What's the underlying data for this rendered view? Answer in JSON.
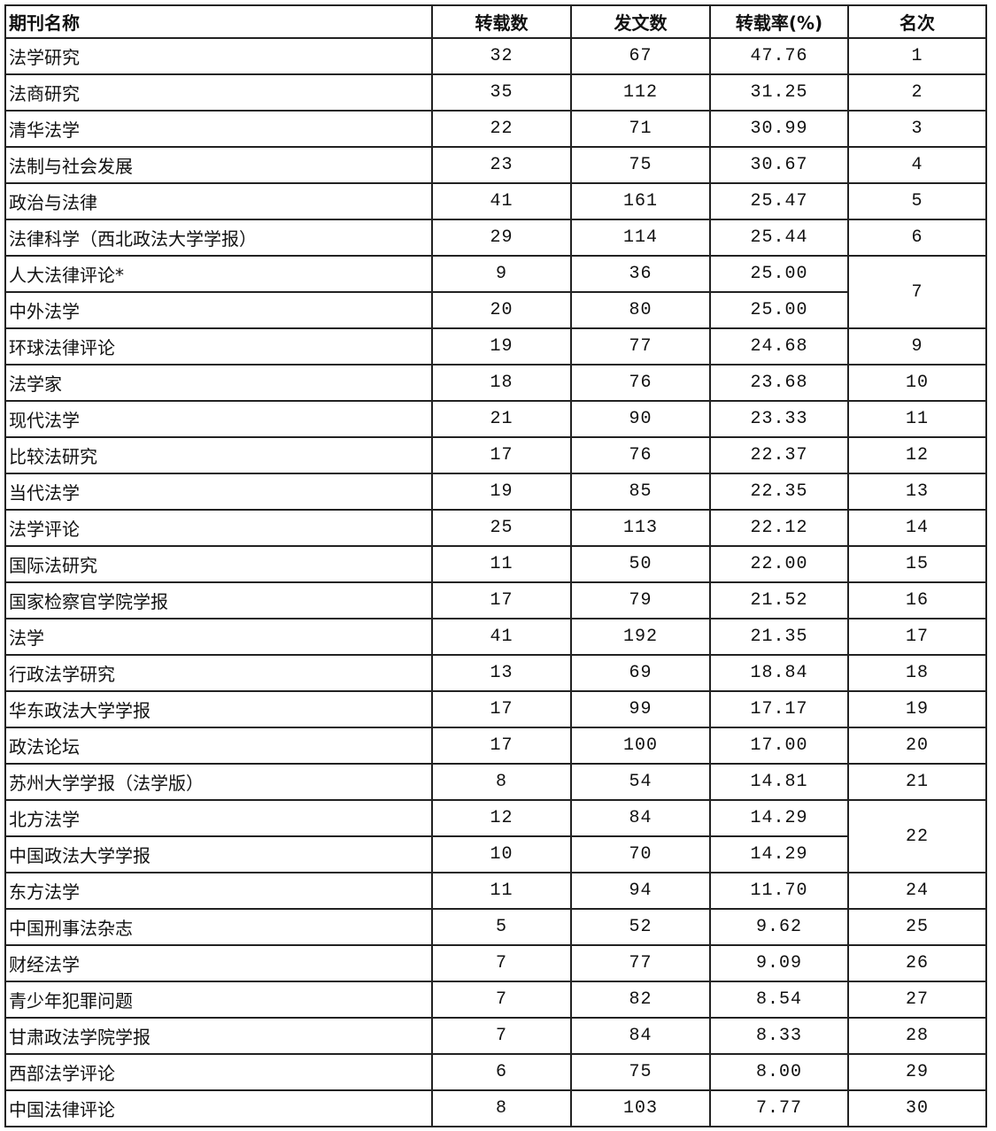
{
  "headers": [
    "期刊名称",
    "转载数",
    "发文数",
    "转载率(%)",
    "名次"
  ],
  "rows": [
    {
      "name": "法学研究",
      "reprints": "32",
      "articles": "67",
      "rate": "47.76",
      "rank": "1"
    },
    {
      "name": "法商研究",
      "reprints": "35",
      "articles": "112",
      "rate": "31.25",
      "rank": "2"
    },
    {
      "name": "清华法学",
      "reprints": "22",
      "articles": "71",
      "rate": "30.99",
      "rank": "3"
    },
    {
      "name": "法制与社会发展",
      "reprints": "23",
      "articles": "75",
      "rate": "30.67",
      "rank": "4"
    },
    {
      "name": "政治与法律",
      "reprints": "41",
      "articles": "161",
      "rate": "25.47",
      "rank": "5"
    },
    {
      "name": "法律科学（西北政法大学学报）",
      "reprints": "29",
      "articles": "114",
      "rate": "25.44",
      "rank": "6"
    },
    {
      "name": "人大法律评论*",
      "reprints": "9",
      "articles": "36",
      "rate": "25.00",
      "rank": "7"
    },
    {
      "name": "中外法学",
      "reprints": "20",
      "articles": "80",
      "rate": "25.00",
      "rank": "7"
    },
    {
      "name": "环球法律评论",
      "reprints": "19",
      "articles": "77",
      "rate": "24.68",
      "rank": "9"
    },
    {
      "name": "法学家",
      "reprints": "18",
      "articles": "76",
      "rate": "23.68",
      "rank": "10"
    },
    {
      "name": "现代法学",
      "reprints": "21",
      "articles": "90",
      "rate": "23.33",
      "rank": "11"
    },
    {
      "name": "比较法研究",
      "reprints": "17",
      "articles": "76",
      "rate": "22.37",
      "rank": "12"
    },
    {
      "name": "当代法学",
      "reprints": "19",
      "articles": "85",
      "rate": "22.35",
      "rank": "13"
    },
    {
      "name": "法学评论",
      "reprints": "25",
      "articles": "113",
      "rate": "22.12",
      "rank": "14"
    },
    {
      "name": "国际法研究",
      "reprints": "11",
      "articles": "50",
      "rate": "22.00",
      "rank": "15"
    },
    {
      "name": "国家检察官学院学报",
      "reprints": "17",
      "articles": "79",
      "rate": "21.52",
      "rank": "16"
    },
    {
      "name": "法学",
      "reprints": "41",
      "articles": "192",
      "rate": "21.35",
      "rank": "17"
    },
    {
      "name": "行政法学研究",
      "reprints": "13",
      "articles": "69",
      "rate": "18.84",
      "rank": "18"
    },
    {
      "name": "华东政法大学学报",
      "reprints": "17",
      "articles": "99",
      "rate": "17.17",
      "rank": "19"
    },
    {
      "name": "政法论坛",
      "reprints": "17",
      "articles": "100",
      "rate": "17.00",
      "rank": "20"
    },
    {
      "name": "苏州大学学报（法学版）",
      "reprints": "8",
      "articles": "54",
      "rate": "14.81",
      "rank": "21"
    },
    {
      "name": "北方法学",
      "reprints": "12",
      "articles": "84",
      "rate": "14.29",
      "rank": "22"
    },
    {
      "name": "中国政法大学学报",
      "reprints": "10",
      "articles": "70",
      "rate": "14.29",
      "rank": "22"
    },
    {
      "name": "东方法学",
      "reprints": "11",
      "articles": "94",
      "rate": "11.70",
      "rank": "24"
    },
    {
      "name": "中国刑事法杂志",
      "reprints": "5",
      "articles": "52",
      "rate": "9.62",
      "rank": "25"
    },
    {
      "name": "财经法学",
      "reprints": "7",
      "articles": "77",
      "rate": "9.09",
      "rank": "26"
    },
    {
      "name": "青少年犯罪问题",
      "reprints": "7",
      "articles": "82",
      "rate": "8.54",
      "rank": "27"
    },
    {
      "name": "甘肃政法学院学报",
      "reprints": "7",
      "articles": "84",
      "rate": "8.33",
      "rank": "28"
    },
    {
      "name": "西部法学评论",
      "reprints": "6",
      "articles": "75",
      "rate": "8.00",
      "rank": "29"
    },
    {
      "name": "中国法律评论",
      "reprints": "8",
      "articles": "103",
      "rate": "7.77",
      "rank": "30"
    }
  ]
}
